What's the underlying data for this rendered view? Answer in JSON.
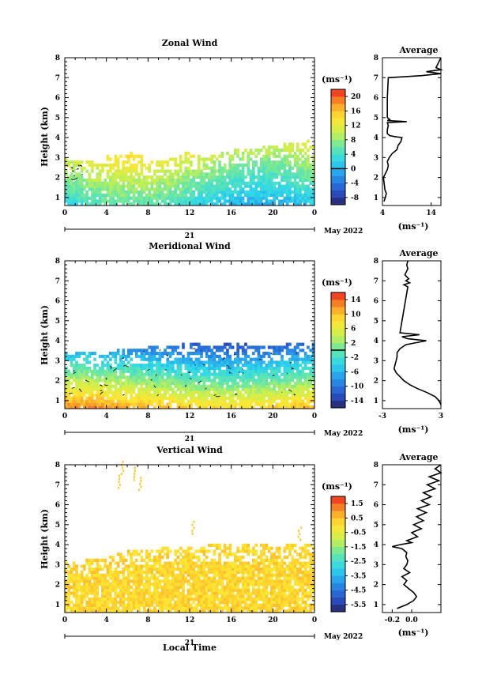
{
  "chart_data": [
    {
      "type": "heatmap",
      "title": "Zonal Wind",
      "ylabel": "Height (km)",
      "xlabel": "",
      "date_label": "21",
      "month_label": "May 2022",
      "xlim": [
        0,
        24
      ],
      "ylim": [
        0.6,
        8
      ],
      "xticks": [
        "0",
        "4",
        "8",
        "12",
        "16",
        "20",
        "0"
      ],
      "yticks": [
        "1",
        "2",
        "3",
        "4",
        "5",
        "6",
        "7",
        "8"
      ],
      "colorbar": {
        "unit": "(ms⁻¹)",
        "range": [
          -10,
          22
        ],
        "ticks": [
          "20",
          "16",
          "12",
          "8",
          "4",
          "0",
          "-4",
          "-8"
        ],
        "tick_values": [
          20,
          16,
          12,
          8,
          4,
          0,
          -4,
          -8
        ],
        "contour_level": 0
      },
      "data_top_km": [
        2.9,
        2.8,
        2.7,
        2.8,
        3.0,
        3.1,
        3.2,
        3.0,
        2.8,
        2.8,
        2.9,
        3.2,
        3.1,
        2.9,
        3.0,
        3.2,
        3.4,
        3.3,
        3.4,
        3.5,
        3.5,
        3.6,
        3.7,
        3.8
      ],
      "profile": {
        "title": "Average",
        "xlabel": "(ms⁻¹)",
        "xlim": [
          4,
          16
        ],
        "xticks": [
          "4",
          "14"
        ],
        "xtick_values": [
          4,
          14
        ],
        "heights_km": [
          0.8,
          1.0,
          1.2,
          1.4,
          1.6,
          1.8,
          2.0,
          2.2,
          2.4,
          2.6,
          2.8,
          3.0,
          3.2,
          3.4,
          3.6,
          3.8,
          4.0,
          4.05,
          4.1,
          4.2,
          4.4,
          4.6,
          4.75,
          4.8,
          4.85,
          4.9,
          5.0,
          6.0,
          7.0,
          7.1,
          7.2,
          7.3,
          7.4,
          7.5,
          8.0
        ],
        "values": [
          4.3,
          4.6,
          4.8,
          4.5,
          4.4,
          4.3,
          4.2,
          4.6,
          5.0,
          5.2,
          5.0,
          5.4,
          6.0,
          7.0,
          7.2,
          7.8,
          8.0,
          6.5,
          5.5,
          5.0,
          5.0,
          5.2,
          5.0,
          9.0,
          5.0,
          5.5,
          5.0,
          5.0,
          5.2,
          12.0,
          16.0,
          13.0,
          16.0,
          15.0,
          16.0
        ]
      }
    },
    {
      "type": "heatmap",
      "title": "Meridional Wind",
      "ylabel": "Height (km)",
      "xlabel": "",
      "date_label": "21",
      "month_label": "May 2022",
      "xlim": [
        0,
        24
      ],
      "ylim": [
        0.6,
        8
      ],
      "xticks": [
        "0",
        "4",
        "8",
        "12",
        "16",
        "20",
        "0"
      ],
      "yticks": [
        "1",
        "2",
        "3",
        "4",
        "5",
        "6",
        "7",
        "8"
      ],
      "colorbar": {
        "unit": "(ms⁻¹)",
        "range": [
          -16,
          16
        ],
        "ticks": [
          "14",
          "10",
          "6",
          "2",
          "-2",
          "-6",
          "-10",
          "-14"
        ],
        "tick_values": [
          14,
          10,
          6,
          2,
          -2,
          -6,
          -10,
          -14
        ],
        "contour_level": 0
      },
      "data_top_km": [
        3.3,
        3.4,
        3.3,
        3.2,
        3.4,
        3.5,
        3.5,
        3.5,
        3.6,
        3.7,
        3.7,
        3.8,
        3.8,
        3.7,
        3.7,
        3.8,
        3.8,
        3.8,
        3.7,
        3.7,
        3.7,
        3.8,
        3.8,
        3.8
      ],
      "profile": {
        "title": "Average",
        "xlabel": "(ms⁻¹)",
        "xlim": [
          -3,
          3
        ],
        "xticks": [
          "-3",
          "3"
        ],
        "xtick_values": [
          -3,
          3
        ],
        "heights_km": [
          0.8,
          1.0,
          1.2,
          1.4,
          1.6,
          1.8,
          2.0,
          2.2,
          2.4,
          2.6,
          2.8,
          3.0,
          3.2,
          3.4,
          3.6,
          3.8,
          4.0,
          4.1,
          4.2,
          4.3,
          4.4,
          6.7,
          6.8,
          6.9,
          7.0,
          7.1,
          7.3,
          7.6,
          7.8,
          8.0
        ],
        "values": [
          3.0,
          2.8,
          2.4,
          1.6,
          0.6,
          -0.2,
          -0.8,
          -1.2,
          -1.6,
          -1.8,
          -1.7,
          -1.6,
          -1.5,
          -1.5,
          -1.2,
          -0.6,
          1.5,
          -0.4,
          -1.0,
          0.8,
          -1.2,
          -0.4,
          -0.8,
          -0.2,
          -0.6,
          -0.3,
          -0.7,
          -0.4,
          -0.5,
          -0.4
        ]
      }
    },
    {
      "type": "heatmap",
      "title": "Vertical Wind",
      "ylabel": "Height (km)",
      "xlabel": "Local Time",
      "date_label": "21",
      "month_label": "May 2022",
      "xlim": [
        0,
        24
      ],
      "ylim": [
        0.6,
        8
      ],
      "xticks": [
        "0",
        "4",
        "8",
        "12",
        "16",
        "20",
        "0"
      ],
      "yticks": [
        "1",
        "2",
        "3",
        "4",
        "5",
        "6",
        "7",
        "8"
      ],
      "colorbar": {
        "unit": "(ms⁻¹)",
        "range": [
          -6,
          2
        ],
        "ticks": [
          "1.5",
          "0.5",
          "-0.5",
          "-1.5",
          "-2.5",
          "-3.5",
          "-4.5",
          "-5.5"
        ],
        "tick_values": [
          1.5,
          0.5,
          -0.5,
          -1.5,
          -2.5,
          -3.5,
          -4.5,
          -5.5
        ],
        "contour_level": null
      },
      "data_top_km": [
        3.0,
        3.1,
        3.2,
        3.2,
        3.4,
        3.5,
        3.6,
        3.7,
        3.7,
        3.8,
        3.8,
        3.8,
        3.8,
        3.9,
        3.9,
        3.9,
        3.8,
        3.9,
        3.9,
        3.9,
        3.8,
        3.9,
        3.9,
        3.9
      ],
      "profile": {
        "title": "Average",
        "xlabel": "(ms⁻¹)",
        "xlim": [
          -0.3,
          0.3
        ],
        "xticks": [
          "-0.2",
          "0.0"
        ],
        "xtick_values": [
          -0.2,
          0.0
        ],
        "heights_km": [
          0.8,
          0.9,
          1.0,
          1.2,
          1.4,
          1.6,
          1.8,
          2.0,
          2.2,
          2.4,
          2.6,
          2.8,
          3.0,
          3.2,
          3.4,
          3.6,
          3.8,
          3.9,
          4.0,
          4.1,
          4.2,
          4.4,
          4.6,
          4.8,
          5.0,
          5.2,
          5.4,
          5.6,
          5.8,
          6.0,
          6.2,
          6.4,
          6.6,
          6.8,
          7.0,
          7.2,
          7.4,
          7.6,
          7.8,
          8.0
        ],
        "values": [
          -0.15,
          -0.1,
          -0.05,
          0.02,
          0.05,
          0.02,
          -0.03,
          -0.08,
          -0.05,
          -0.1,
          -0.02,
          -0.08,
          -0.05,
          -0.04,
          -0.06,
          -0.05,
          -0.1,
          -0.2,
          -0.12,
          0.0,
          -0.05,
          0.06,
          0.0,
          0.1,
          0.02,
          0.12,
          0.05,
          0.15,
          0.06,
          0.18,
          0.1,
          0.2,
          0.12,
          0.24,
          0.16,
          0.28,
          0.18,
          0.3,
          0.24,
          0.3
        ]
      }
    }
  ]
}
